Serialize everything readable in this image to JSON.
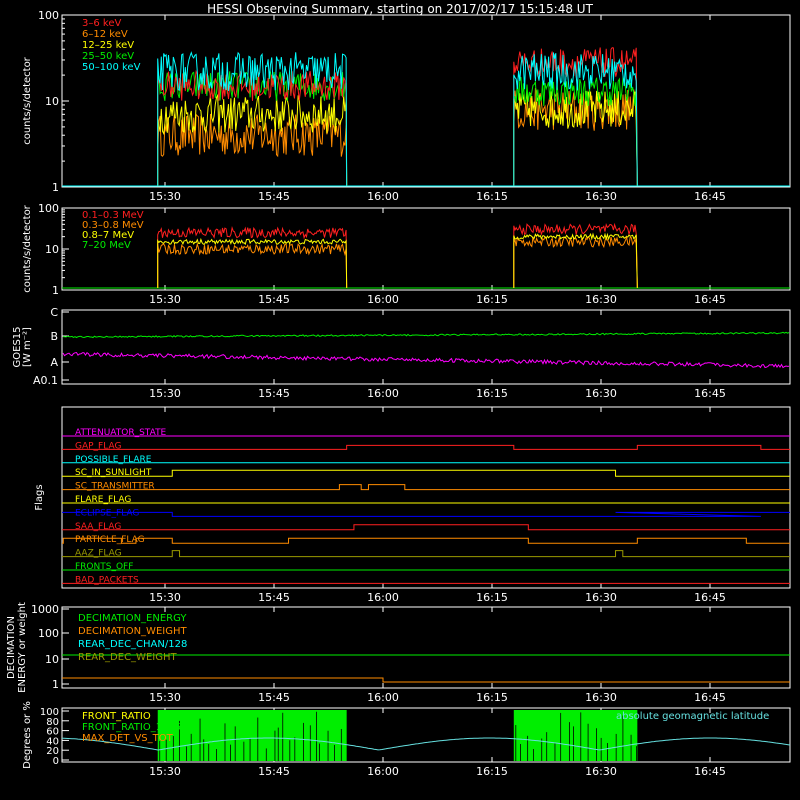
{
  "title": "HESSI Observing Summary, starting on 2017/02/17 15:15:48 UT",
  "colors": {
    "background": "#000000",
    "axis": "#ffffff",
    "red": "#ff2020",
    "orange": "#ff8c00",
    "yellow": "#ffff00",
    "green": "#00ee00",
    "cyan": "#00ffff",
    "magenta": "#ff00ff",
    "blue": "#0000ff",
    "olive": "#9a9a00",
    "lightcyan": "#66e0e0"
  },
  "x_axis": {
    "ticks": [
      "15:30",
      "15:45",
      "16:00",
      "16:15",
      "16:30",
      "16:45"
    ],
    "range": [
      "15:15:48",
      "16:52"
    ]
  },
  "panels": [
    {
      "id": "lightcurves",
      "ylabel": "counts/s/detector",
      "scale": "log",
      "ylim": [
        1,
        100
      ],
      "ytick_labels": [
        "100",
        "10",
        "1"
      ],
      "legend": [
        {
          "label": "3–6 keV",
          "color": "#ff2020"
        },
        {
          "label": "6–12 keV",
          "color": "#ff8c00"
        },
        {
          "label": "12–25 keV",
          "color": "#ffff00"
        },
        {
          "label": "25–50 keV",
          "color": "#00ee00"
        },
        {
          "label": "50–100 keV",
          "color": "#00ffff"
        }
      ]
    },
    {
      "id": "rear",
      "ylabel": "counts/s/detector",
      "scale": "log",
      "ylim": [
        1,
        100
      ],
      "ytick_labels": [
        "100",
        "10",
        "1"
      ],
      "legend": [
        {
          "label": "0.1–0.3 MeV",
          "color": "#ff2020"
        },
        {
          "label": "0.3–0.8 MeV",
          "color": "#ff8c00"
        },
        {
          "label": "0.8–7 MeV",
          "color": "#ffff00"
        },
        {
          "label": "7–20 MeV",
          "color": "#00ee00"
        }
      ]
    },
    {
      "id": "goes",
      "ylabel_lines": [
        "GOES15",
        "[W m⁻²]"
      ],
      "ytick_labels": [
        "C",
        "B",
        "A",
        "A0.1"
      ]
    },
    {
      "id": "flags",
      "ylabel": "Flags",
      "flags": [
        {
          "label": "ATTENUATOR_STATE",
          "color": "#ff00ff"
        },
        {
          "label": "GAP_FLAG",
          "color": "#ff2020"
        },
        {
          "label": "POSSIBLE_FLARE",
          "color": "#00ffff"
        },
        {
          "label": "SC_IN_SUNLIGHT",
          "color": "#ffff00"
        },
        {
          "label": "SC_TRANSMITTER",
          "color": "#ff8c00"
        },
        {
          "label": "FLARE_FLAG",
          "color": "#ffff00"
        },
        {
          "label": "ECLIPSE_FLAG",
          "color": "#0000ff"
        },
        {
          "label": "SAA_FLAG",
          "color": "#ff2020"
        },
        {
          "label": "PARTICLE_FLAG",
          "color": "#ff8c00"
        },
        {
          "label": "AAZ_FLAG",
          "color": "#9a9a00"
        },
        {
          "label": "FRONTS_OFF",
          "color": "#00ee00"
        },
        {
          "label": "BAD_PACKETS",
          "color": "#ff2020"
        }
      ]
    },
    {
      "id": "decimation",
      "ylabel_lines": [
        "DECIMATION",
        "ENERGY or weight"
      ],
      "ytick_labels": [
        "1000",
        "100",
        "10",
        "1"
      ],
      "legend": [
        {
          "label": "DECIMATION_ENERGY",
          "color": "#00ee00"
        },
        {
          "label": "DECIMATION_WEIGHT",
          "color": "#ff8c00"
        },
        {
          "label": "REAR_DEC_CHAN/128",
          "color": "#00ffff"
        },
        {
          "label": "REAR_DEC_WEIGHT",
          "color": "#9a9a00"
        }
      ]
    },
    {
      "id": "ratios",
      "ylabel": "Degrees or %",
      "ytick_labels": [
        "100",
        "80",
        "60",
        "40",
        "20",
        "0"
      ],
      "legend": [
        {
          "label": "FRONT_RATIO",
          "color": "#ffff00"
        },
        {
          "label": "FRONT_RATIO_1225",
          "color": "#00ee00"
        },
        {
          "label": "MAX_DET_VS_TOT",
          "color": "#ff8c00"
        }
      ],
      "right_label": "absolute geomagnetic latitude"
    }
  ],
  "chart_data": {
    "type": "line",
    "x_unit": "UT time",
    "observing_intervals": [
      [
        "15:29",
        "15:55"
      ],
      [
        "16:18",
        "16:35"
      ]
    ],
    "series": [
      {
        "name": "3–6 keV",
        "values_interval1": 15,
        "values_interval2": 28
      },
      {
        "name": "6–12 keV",
        "values_interval1": 4,
        "values_interval2": 8
      },
      {
        "name": "12–25 keV",
        "values_interval1": 7,
        "values_interval2": 8
      },
      {
        "name": "25–50 keV",
        "values_interval1": 15,
        "values_interval2": 13
      },
      {
        "name": "50–100 keV",
        "values_interval1": 22,
        "values_interval2": 22
      },
      {
        "name": "0.1–0.3 MeV",
        "values_interval1": 25,
        "values_interval2": 30
      },
      {
        "name": "0.3–0.8 MeV",
        "values_interval1": 10,
        "values_interval2": 15
      },
      {
        "name": "0.8–7 MeV",
        "values_interval1": 15,
        "values_interval2": 20
      },
      {
        "name": "7–20 MeV",
        "values_interval1": 1,
        "values_interval2": 1
      }
    ],
    "goes_levels": {
      "upper_level": "B",
      "lower_level": "A"
    }
  }
}
